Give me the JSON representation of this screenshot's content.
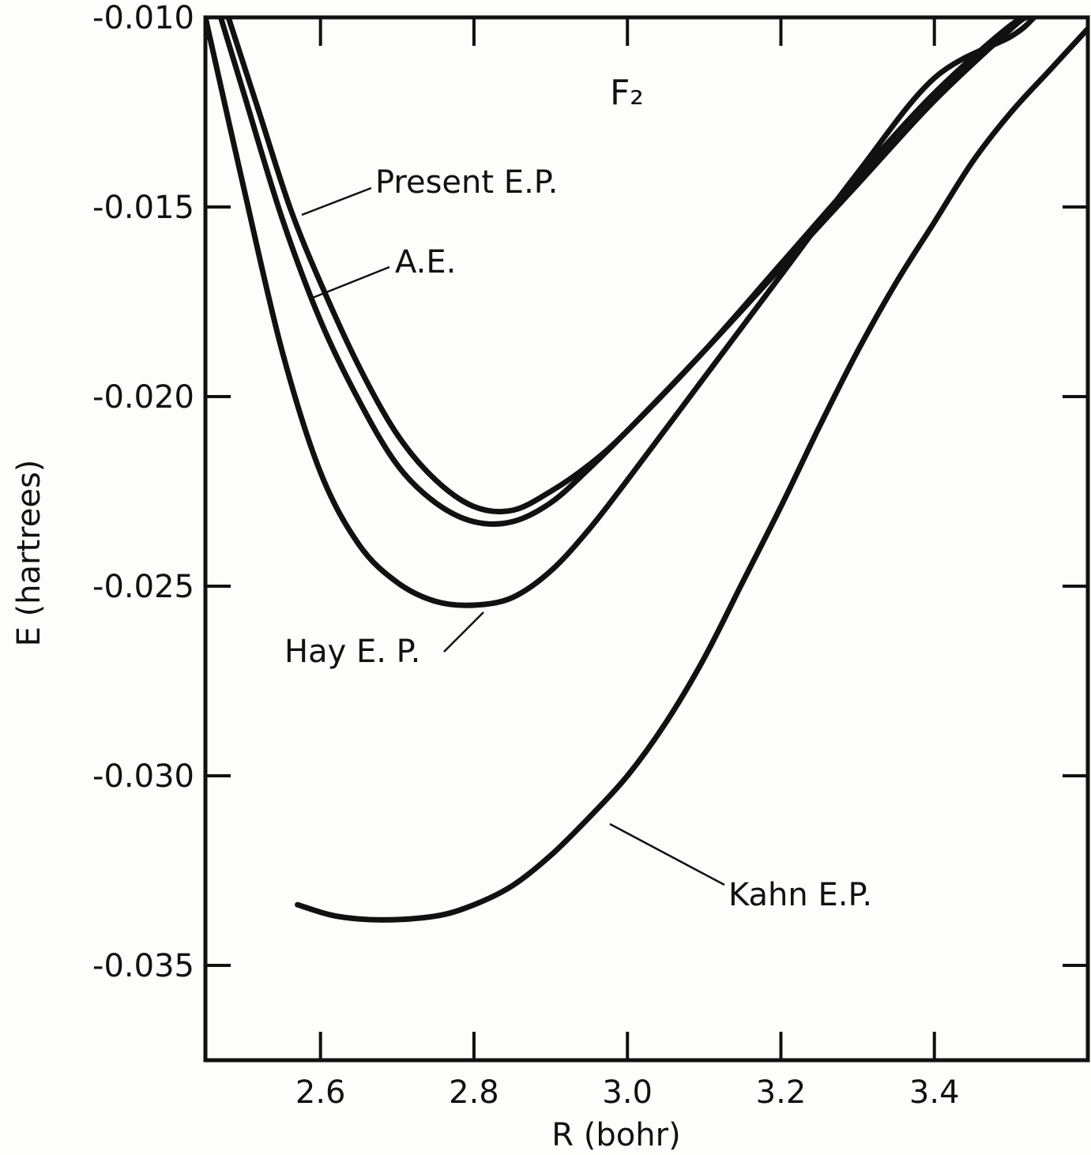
{
  "chart_data": {
    "type": "line",
    "title": "F₂",
    "xlabel": "R (bohr)",
    "ylabel": "E (hartrees)",
    "xlim": [
      2.45,
      3.6
    ],
    "ylim": [
      -0.0375,
      -0.01
    ],
    "grid": false,
    "x_ticks": [
      2.6,
      2.8,
      3.0,
      3.2,
      3.4
    ],
    "x_tick_labels": [
      "2.6",
      "2.8",
      "3.0",
      "3.2",
      "3.4"
    ],
    "y_ticks": [
      -0.01,
      -0.015,
      -0.02,
      -0.025,
      -0.03,
      -0.035
    ],
    "y_tick_labels": [
      "-0.010",
      "-0.015",
      "-0.020",
      "-0.025",
      "-0.030",
      "-0.035"
    ],
    "series": [
      {
        "name": "Present E.P.",
        "x": [
          2.48,
          2.52,
          2.56,
          2.6,
          2.65,
          2.7,
          2.75,
          2.8,
          2.85,
          2.9,
          2.95,
          3.0,
          3.1,
          3.2,
          3.3,
          3.4,
          3.5,
          3.53
        ],
        "y": [
          -0.01,
          -0.0125,
          -0.015,
          -0.017,
          -0.0192,
          -0.021,
          -0.0222,
          -0.0229,
          -0.023,
          -0.0225,
          -0.0218,
          -0.0209,
          -0.0188,
          -0.0165,
          -0.0142,
          -0.012,
          -0.0102,
          -0.01
        ]
      },
      {
        "name": "A.E.",
        "x": [
          2.47,
          2.5,
          2.55,
          2.6,
          2.65,
          2.7,
          2.75,
          2.8,
          2.85,
          2.9,
          2.95,
          3.0,
          3.1,
          3.2,
          3.3,
          3.4,
          3.5,
          3.52
        ],
        "y": [
          -0.01,
          -0.012,
          -0.0153,
          -0.018,
          -0.0201,
          -0.0218,
          -0.0228,
          -0.0233,
          -0.0233,
          -0.0228,
          -0.0219,
          -0.0209,
          -0.0188,
          -0.0166,
          -0.0144,
          -0.0122,
          -0.0103,
          -0.01
        ]
      },
      {
        "name": "Hay E. P.",
        "x": [
          2.45,
          2.5,
          2.55,
          2.6,
          2.65,
          2.7,
          2.75,
          2.8,
          2.85,
          2.9,
          2.95,
          3.0,
          3.1,
          3.2,
          3.3,
          3.4,
          3.5,
          3.53
        ],
        "y": [
          -0.01,
          -0.0145,
          -0.0188,
          -0.022,
          -0.0239,
          -0.0249,
          -0.0254,
          -0.0255,
          -0.0253,
          -0.0246,
          -0.0235,
          -0.0222,
          -0.0195,
          -0.0168,
          -0.0141,
          -0.0116,
          -0.0105,
          -0.01
        ]
      },
      {
        "name": "Kahn E.P.",
        "x": [
          2.57,
          2.62,
          2.68,
          2.75,
          2.8,
          2.85,
          2.9,
          2.95,
          3.0,
          3.05,
          3.1,
          3.15,
          3.2,
          3.25,
          3.3,
          3.35,
          3.4,
          3.45,
          3.5,
          3.55,
          3.6
        ],
        "y": [
          -0.0334,
          -0.0337,
          -0.0338,
          -0.0337,
          -0.0334,
          -0.0329,
          -0.0321,
          -0.0311,
          -0.03,
          -0.0286,
          -0.0269,
          -0.0249,
          -0.0229,
          -0.0208,
          -0.0188,
          -0.017,
          -0.0154,
          -0.0138,
          -0.0125,
          -0.0114,
          -0.0103
        ]
      }
    ]
  }
}
